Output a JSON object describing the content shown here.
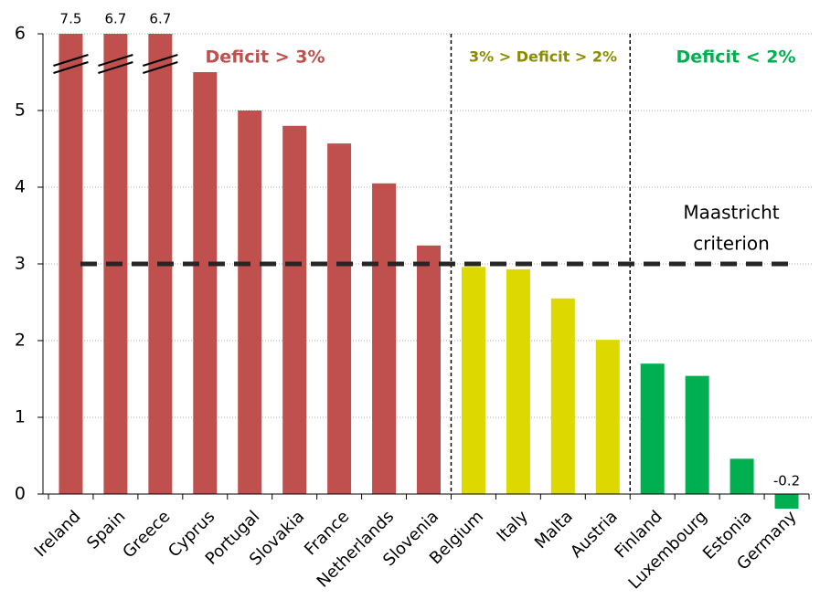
{
  "chart_data": {
    "type": "bar",
    "categories": [
      "Ireland",
      "Spain",
      "Greece",
      "Cyprus",
      "Portugal",
      "Slovakia",
      "France",
      "Netherlands",
      "Slovenia",
      "Belgium",
      "Italy",
      "Malta",
      "Austria",
      "Finland",
      "Luxembourg",
      "Estonia",
      "Germany"
    ],
    "values": [
      7.5,
      6.7,
      6.7,
      5.5,
      5.0,
      4.8,
      4.57,
      4.05,
      3.24,
      2.96,
      2.93,
      2.55,
      2.01,
      1.7,
      1.54,
      0.46,
      -0.2
    ],
    "value_labels": [
      "7.5",
      "6.7",
      "6.7",
      null,
      null,
      null,
      null,
      null,
      null,
      null,
      null,
      null,
      null,
      null,
      null,
      null,
      "-0.2"
    ],
    "colors": [
      "#c0504d",
      "#c0504d",
      "#c0504d",
      "#c0504d",
      "#c0504d",
      "#c0504d",
      "#c0504d",
      "#c0504d",
      "#c0504d",
      "#dcd800",
      "#dcd800",
      "#dcd800",
      "#dcd800",
      "#00b050",
      "#00b050",
      "#00b050",
      "#00b050"
    ],
    "ylim": [
      0,
      6
    ],
    "yticks": [
      0,
      1,
      2,
      3,
      4,
      5,
      6
    ],
    "grid": true,
    "reference_line": {
      "value": 3,
      "label_lines": [
        "Maastricht",
        "criterion"
      ]
    },
    "annotations": [
      {
        "text": "Deficit > 3%",
        "color": "#c0504d"
      },
      {
        "text": "3% > Deficit > 2%",
        "color": "#8b8b00"
      },
      {
        "text": "Deficit < 2%",
        "color": "#00b050"
      }
    ]
  }
}
